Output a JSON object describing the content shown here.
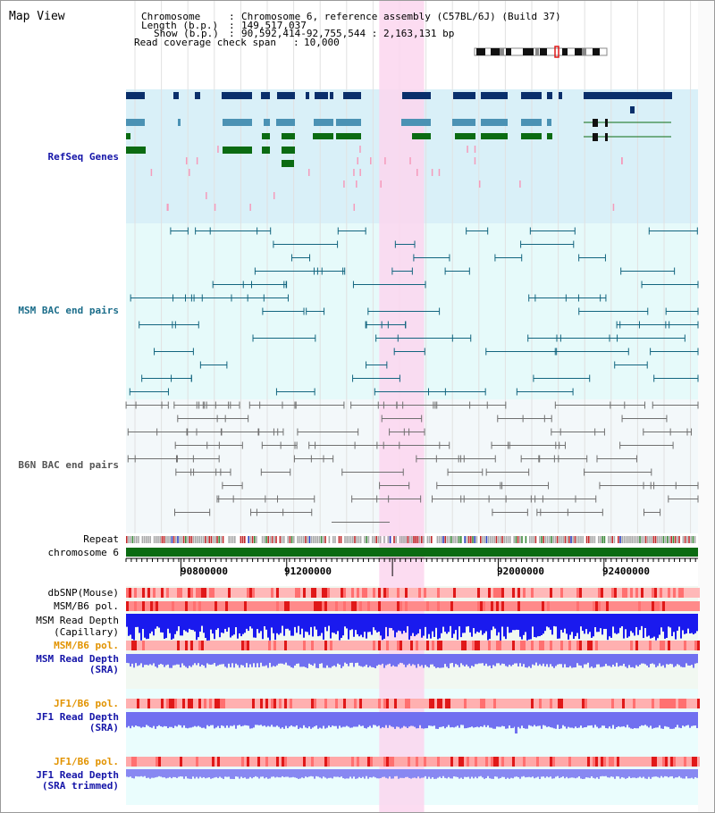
{
  "title": "Map View",
  "header": {
    "chromosome_label": "Chromosome",
    "chromosome_value": "Chromosome 6, reference assembly (C57BL/6J) (Build 37)",
    "length_label": "Length (b.p.)",
    "length_value": "149,517,037",
    "show_label": "Show (b.p.)",
    "show_value": "90,592,414-92,755,544 : 2,163,131 bp",
    "coverage_label": "Read coverage check span",
    "coverage_value": "10,000"
  },
  "tracks": {
    "refseq": "RefSeq Genes",
    "msm_bac": "MSM BAC end pairs",
    "b6n_bac": "B6N BAC end pairs",
    "repeat": "Repeat",
    "chromosome": "chromosome 6",
    "dbsnp": "dbSNP(Mouse)",
    "msm_b6_pol_1": "MSM/B6 pol.",
    "msm_depth_cap_1": "MSM Read Depth",
    "msm_depth_cap_2": "(Capillary)",
    "msm_b6_pol_2": "MSM/B6 pol.",
    "msm_depth_sra_1": "MSM Read Depth",
    "msm_depth_sra_2": "(SRA)",
    "jf1_b6_pol_1": "JF1/B6 pol.",
    "jf1_depth_sra_1": "JF1 Read Depth",
    "jf1_depth_sra_2": "(SRA)",
    "jf1_b6_pol_2": "JF1/B6 pol.",
    "jf1_depth_trim_1": "JF1 Read Depth",
    "jf1_depth_trim_2": "(SRA trimmed)"
  },
  "axis": {
    "ticks": [
      "90800000",
      "91200000",
      "92000000",
      "92400000"
    ],
    "tick_values": [
      90800000,
      91200000,
      91600000,
      92000000,
      92400000
    ],
    "range": [
      90592414,
      92755544
    ]
  },
  "highlight": {
    "range": [
      91550000,
      91720000
    ]
  },
  "colors": {
    "refseq_bg": "#d9f0f8",
    "bac_bg": "#e6fafa",
    "b6n_bg": "#f3f8fa",
    "highlight": "#fcd6ee",
    "gene_dark": "#0a2f6b",
    "gene_mid": "#4b92b4",
    "gene_green": "#0b6b12",
    "msm_pair": "#13657f",
    "b6n_pair": "#707070",
    "chromosome_bar": "#0b6b12",
    "depth_blue": "#1a1aee",
    "depth_light": "#7070f0",
    "pol_red": "#e01818",
    "label_blue": "#1414a8",
    "label_teal": "#1b6d8a",
    "label_orange": "#e29300"
  }
}
